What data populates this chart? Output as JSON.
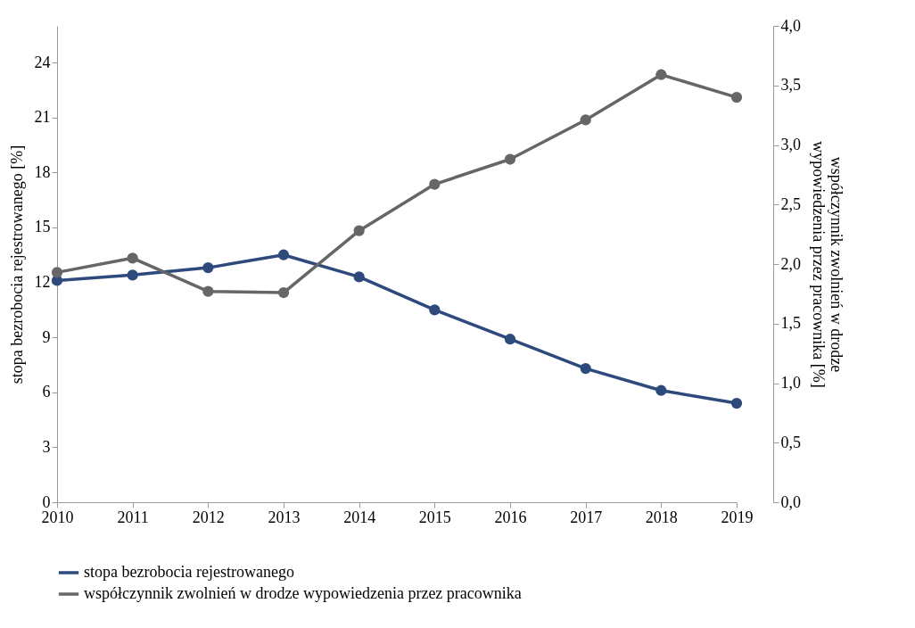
{
  "chart_data": {
    "type": "line",
    "xlabel": null,
    "ylabel": "stopa bezrobocia rejestrowanego [%]",
    "y2label": "współczynnik zwolnień w drodze\nwypowiedzenia przez pracownika [%]",
    "categories": [
      "2010",
      "2011",
      "2012",
      "2013",
      "2014",
      "2015",
      "2016",
      "2017",
      "2018",
      "2019"
    ],
    "series": [
      {
        "name": "stopa bezrobocia rejestrowanego",
        "color": "#2e4a7d",
        "values": [
          12.1,
          12.4,
          12.8,
          13.5,
          12.3,
          10.5,
          8.9,
          7.3,
          6.1,
          5.4
        ]
      },
      {
        "name": "współczynnik zwolnień w drodze wypowiedzenia przez pracownika",
        "color": "#666666",
        "axis": "y2",
        "values": [
          1.93,
          2.05,
          1.77,
          1.76,
          2.28,
          2.67,
          2.88,
          3.21,
          3.59,
          3.4
        ]
      }
    ],
    "ylim": [
      0,
      26
    ],
    "yticks": [
      0,
      3,
      6,
      9,
      12,
      15,
      18,
      21,
      24
    ],
    "y2lim": [
      0,
      4
    ],
    "y2ticks": [
      {
        "value": 0,
        "label": "0,0"
      },
      {
        "value": 0.5,
        "label": "0,5"
      },
      {
        "value": 1,
        "label": "1,0"
      },
      {
        "value": 1.5,
        "label": "1,5"
      },
      {
        "value": 2,
        "label": "2,0"
      },
      {
        "value": 2.5,
        "label": "2,5"
      },
      {
        "value": 3,
        "label": "3,0"
      },
      {
        "value": 3.5,
        "label": "3,5"
      },
      {
        "value": 4,
        "label": "4,0"
      }
    ],
    "grid": false,
    "legend": "bottom",
    "marker": "circle",
    "line_style": "solid"
  }
}
